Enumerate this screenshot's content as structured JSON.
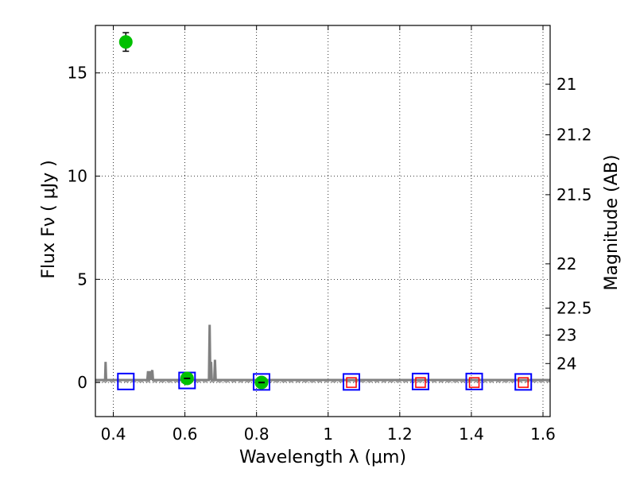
{
  "chart_data": {
    "type": "scatter",
    "xlabel": "Wavelength  λ (μm)",
    "ylabel": "Flux  Fν  ( μJy )",
    "ylabel_right": "Magnitude (AB)",
    "xlim": [
      0.35,
      1.62
    ],
    "ylim": [
      -1.65,
      17.3
    ],
    "x_ticks": [
      0.4,
      0.6,
      0.8,
      1.0,
      1.2,
      1.4,
      1.6
    ],
    "x_tick_labels": [
      "0.4",
      "0.6",
      "0.8",
      "1",
      "1.2",
      "1.4",
      "1.6"
    ],
    "y_ticks": [
      0,
      5,
      10,
      15
    ],
    "y_tick_labels": [
      "0",
      "5",
      "10",
      "15"
    ],
    "right_ticks": [
      {
        "label": "21",
        "flux": 14.45
      },
      {
        "label": "21.2",
        "flux": 12.0
      },
      {
        "label": "21.5",
        "flux": 9.1
      },
      {
        "label": "22",
        "flux": 5.75
      },
      {
        "label": "22.5",
        "flux": 3.6
      },
      {
        "label": "23",
        "flux": 2.3
      },
      {
        "label": "24",
        "flux": 0.92
      }
    ],
    "grid": true,
    "colors": {
      "observed": "#00c000",
      "model_box": "#0000ff",
      "upper_limit": "#ff0000",
      "spectrum": "#808080"
    },
    "observed_points": [
      {
        "x": 0.435,
        "y": 16.5,
        "yerr": 0.45
      },
      {
        "x": 0.606,
        "y": 0.2,
        "yerr": 0.1
      },
      {
        "x": 0.814,
        "y": 0.0,
        "yerr": 0.08
      }
    ],
    "model_points": [
      {
        "x": 0.435,
        "y": 0.05
      },
      {
        "x": 0.606,
        "y": 0.1
      },
      {
        "x": 0.814,
        "y": 0.03
      },
      {
        "x": 1.065,
        "y": 0.03
      },
      {
        "x": 1.258,
        "y": 0.05
      },
      {
        "x": 1.408,
        "y": 0.05
      },
      {
        "x": 1.545,
        "y": 0.03
      }
    ],
    "upper_limits": [
      {
        "x": 1.065,
        "y": 0.0
      },
      {
        "x": 1.258,
        "y": 0.0
      },
      {
        "x": 1.408,
        "y": 0.0
      },
      {
        "x": 1.545,
        "y": 0.0
      }
    ],
    "spectrum": [
      [
        0.35,
        0.12
      ],
      [
        0.377,
        0.12
      ],
      [
        0.3785,
        1.0
      ],
      [
        0.38,
        0.12
      ],
      [
        0.495,
        0.12
      ],
      [
        0.497,
        0.55
      ],
      [
        0.499,
        0.12
      ],
      [
        0.5,
        0.12
      ],
      [
        0.503,
        0.55
      ],
      [
        0.505,
        0.12
      ],
      [
        0.507,
        0.5
      ],
      [
        0.509,
        0.6
      ],
      [
        0.511,
        0.12
      ],
      [
        0.667,
        0.12
      ],
      [
        0.669,
        2.8
      ],
      [
        0.671,
        0.12
      ],
      [
        0.673,
        1.0
      ],
      [
        0.675,
        0.12
      ],
      [
        0.682,
        0.12
      ],
      [
        0.684,
        1.1
      ],
      [
        0.686,
        0.12
      ],
      [
        1.62,
        0.12
      ]
    ]
  }
}
